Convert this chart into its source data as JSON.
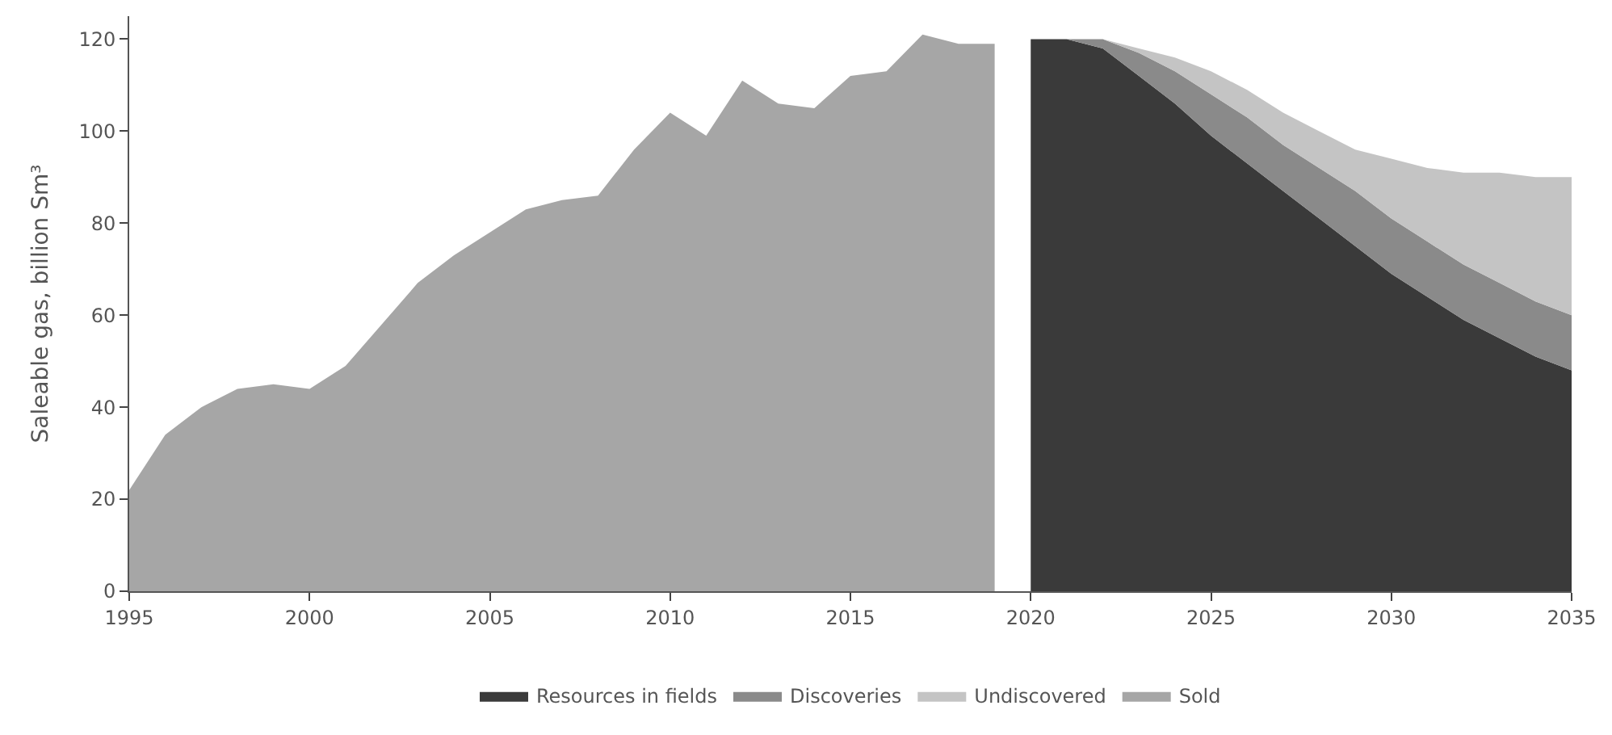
{
  "chart_data": {
    "type": "area",
    "stacked": true,
    "ylabel": "Saleable gas, billion Sm³",
    "x": [
      1995,
      1996,
      1997,
      1998,
      1999,
      2000,
      2001,
      2002,
      2003,
      2004,
      2005,
      2006,
      2007,
      2008,
      2009,
      2010,
      2011,
      2012,
      2013,
      2014,
      2015,
      2016,
      2017,
      2018,
      2019,
      2020,
      2021,
      2022,
      2023,
      2024,
      2025,
      2026,
      2027,
      2028,
      2029,
      2030,
      2031,
      2032,
      2033,
      2034,
      2035
    ],
    "xlim": [
      1995,
      2035
    ],
    "xticks": [
      1995,
      2000,
      2005,
      2010,
      2015,
      2020,
      2025,
      2030,
      2035
    ],
    "ylim": [
      0,
      125
    ],
    "yticks": [
      0,
      20,
      40,
      60,
      80,
      100,
      120
    ],
    "legend": "bottom",
    "series": [
      {
        "name": "Resources in fields",
        "color": "#3a3a3a",
        "values": [
          null,
          null,
          null,
          null,
          null,
          null,
          null,
          null,
          null,
          null,
          null,
          null,
          null,
          null,
          null,
          null,
          null,
          null,
          null,
          null,
          null,
          null,
          null,
          null,
          null,
          120,
          120,
          118,
          112,
          106,
          99,
          93,
          87,
          81,
          75,
          69,
          64,
          59,
          55,
          51,
          48
        ]
      },
      {
        "name": "Discoveries",
        "color": "#8a8a8a",
        "values": [
          null,
          null,
          null,
          null,
          null,
          null,
          null,
          null,
          null,
          null,
          null,
          null,
          null,
          null,
          null,
          null,
          null,
          null,
          null,
          null,
          null,
          null,
          null,
          null,
          null,
          0,
          0,
          2,
          5,
          7,
          9,
          10,
          10,
          11,
          12,
          12,
          12,
          12,
          12,
          12,
          12
        ]
      },
      {
        "name": "Undiscovered",
        "color": "#c4c4c4",
        "values": [
          null,
          null,
          null,
          null,
          null,
          null,
          null,
          null,
          null,
          null,
          null,
          null,
          null,
          null,
          null,
          null,
          null,
          null,
          null,
          null,
          null,
          null,
          null,
          null,
          null,
          0,
          0,
          0,
          1,
          3,
          5,
          6,
          7,
          8,
          9,
          13,
          16,
          20,
          24,
          27,
          30
        ]
      },
      {
        "name": "Sold",
        "color": "#a6a6a6",
        "values": [
          22,
          34,
          40,
          44,
          45,
          44,
          49,
          58,
          67,
          73,
          78,
          83,
          85,
          86,
          96,
          104,
          99,
          111,
          106,
          105,
          112,
          113,
          121,
          119,
          119,
          null,
          null,
          null,
          null,
          null,
          null,
          null,
          null,
          null,
          null,
          null,
          null,
          null,
          null,
          null,
          null
        ]
      }
    ]
  }
}
